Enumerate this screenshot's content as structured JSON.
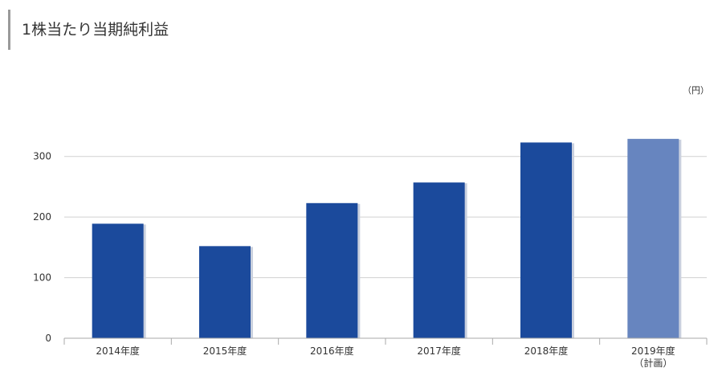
{
  "page": {
    "title": "1株当たり当期純利益"
  },
  "chart_data": {
    "type": "bar",
    "title": "1株当たり当期純利益",
    "unit": "（円）",
    "categories": [
      {
        "label": "2014年度",
        "sublabel": ""
      },
      {
        "label": "2015年度",
        "sublabel": ""
      },
      {
        "label": "2016年度",
        "sublabel": ""
      },
      {
        "label": "2017年度",
        "sublabel": ""
      },
      {
        "label": "2018年度",
        "sublabel": ""
      },
      {
        "label": "2019年度",
        "sublabel": "（計画）"
      }
    ],
    "values": [
      189,
      152,
      223,
      257,
      323,
      329
    ],
    "ylim": [
      0,
      350
    ],
    "yticks": [
      0,
      100,
      200,
      300
    ],
    "grid": true,
    "colors": {
      "actual": "#1b4a9c",
      "plan": "#6785bf",
      "bar_shadow": "#c9d0de",
      "grid": "#d0d0d0",
      "axis": "#aaaaaa"
    },
    "plan_index": 5
  }
}
